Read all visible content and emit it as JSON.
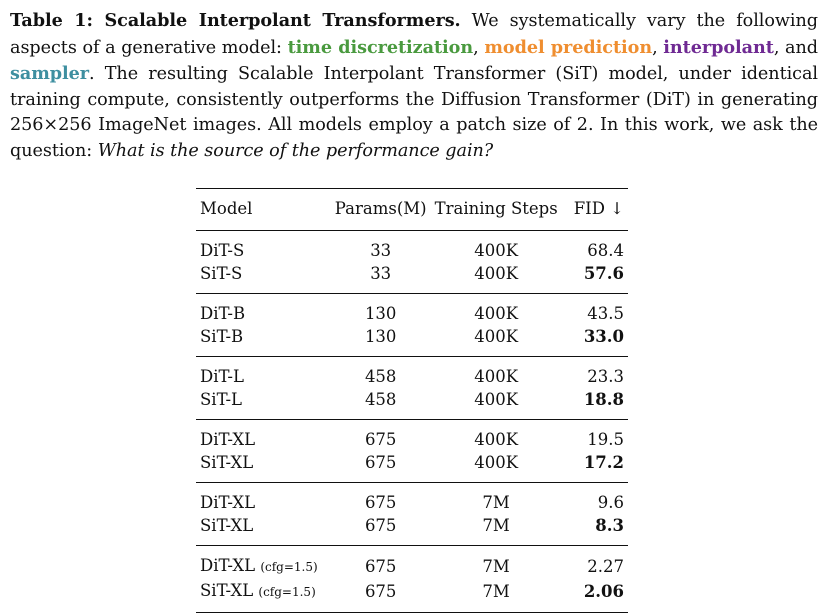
{
  "caption": {
    "label": "Table 1: Scalable Interpolant Transformers.",
    "text1": " We systematically vary the following aspects of a generative model: ",
    "aspect1": "time discretization",
    "sep1": ", ",
    "aspect2": "model prediction",
    "sep2": ", ",
    "aspect3": "interpolant",
    "sep3": ", and ",
    "aspect4": "sampler",
    "text2": ". The resulting Scalable Interpolant Transformer (SiT) model, under identical training compute, consistently outperforms the Diffusion Transformer (DiT) in generating 256×256 ImageNet images. All models employ a patch size of 2. In this work, we ask the question: ",
    "question": "What is the source of the performance gain?"
  },
  "colors": {
    "time_discretization": "#4a9a3f",
    "model_prediction": "#ef8e30",
    "interpolant": "#6f2a93",
    "sampler": "#3e8fa0"
  },
  "table": {
    "headers": {
      "model": "Model",
      "params": "Params(M)",
      "steps": "Training Steps",
      "fid": "FID ↓"
    },
    "groups": [
      [
        {
          "model": "DiT-S",
          "cfg": "",
          "params": "33",
          "steps": "400K",
          "fid": "68.4",
          "bold": false
        },
        {
          "model": "SiT-S",
          "cfg": "",
          "params": "33",
          "steps": "400K",
          "fid": "57.6",
          "bold": true
        }
      ],
      [
        {
          "model": "DiT-B",
          "cfg": "",
          "params": "130",
          "steps": "400K",
          "fid": "43.5",
          "bold": false
        },
        {
          "model": "SiT-B",
          "cfg": "",
          "params": "130",
          "steps": "400K",
          "fid": "33.0",
          "bold": true
        }
      ],
      [
        {
          "model": "DiT-L",
          "cfg": "",
          "params": "458",
          "steps": "400K",
          "fid": "23.3",
          "bold": false
        },
        {
          "model": "SiT-L",
          "cfg": "",
          "params": "458",
          "steps": "400K",
          "fid": "18.8",
          "bold": true
        }
      ],
      [
        {
          "model": "DiT-XL",
          "cfg": "",
          "params": "675",
          "steps": "400K",
          "fid": "19.5",
          "bold": false
        },
        {
          "model": "SiT-XL",
          "cfg": "",
          "params": "675",
          "steps": "400K",
          "fid": "17.2",
          "bold": true
        }
      ],
      [
        {
          "model": "DiT-XL",
          "cfg": "",
          "params": "675",
          "steps": "7M",
          "fid": "9.6",
          "bold": false
        },
        {
          "model": "SiT-XL",
          "cfg": "",
          "params": "675",
          "steps": "7M",
          "fid": "8.3",
          "bold": true
        }
      ],
      [
        {
          "model": "DiT-XL",
          "cfg": "(cfg=1.5)",
          "params": "675",
          "steps": "7M",
          "fid": "2.27",
          "bold": false
        },
        {
          "model": "SiT-XL",
          "cfg": "(cfg=1.5)",
          "params": "675",
          "steps": "7M",
          "fid": "2.06",
          "bold": true
        }
      ]
    ]
  }
}
